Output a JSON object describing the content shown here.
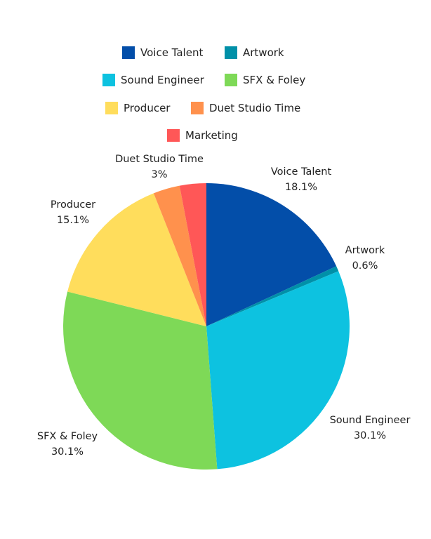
{
  "chart_data": {
    "type": "pie",
    "title": "",
    "start_angle_deg": 0,
    "direction": "clockwise",
    "legend_position": "top",
    "slices": [
      {
        "label": "Voice Talent",
        "value": 18.1,
        "value_label": "18.1%",
        "color": "#034EA9"
      },
      {
        "label": "Artwork",
        "value": 0.6,
        "value_label": "0.6%",
        "color": "#0090A8"
      },
      {
        "label": "Sound Engineer",
        "value": 30.1,
        "value_label": "30.1%",
        "color": "#0DC2E0"
      },
      {
        "label": "SFX & Foley",
        "value": 30.1,
        "value_label": "30.1%",
        "color": "#7ED957"
      },
      {
        "label": "Producer",
        "value": 15.1,
        "value_label": "15.1%",
        "color": "#FFDD5C"
      },
      {
        "label": "Duet Studio Time",
        "value": 3,
        "value_label": "3%",
        "color": "#FF914D"
      },
      {
        "label": "Marketing",
        "value": 3,
        "value_label": "",
        "color": "#FF5757"
      }
    ]
  }
}
